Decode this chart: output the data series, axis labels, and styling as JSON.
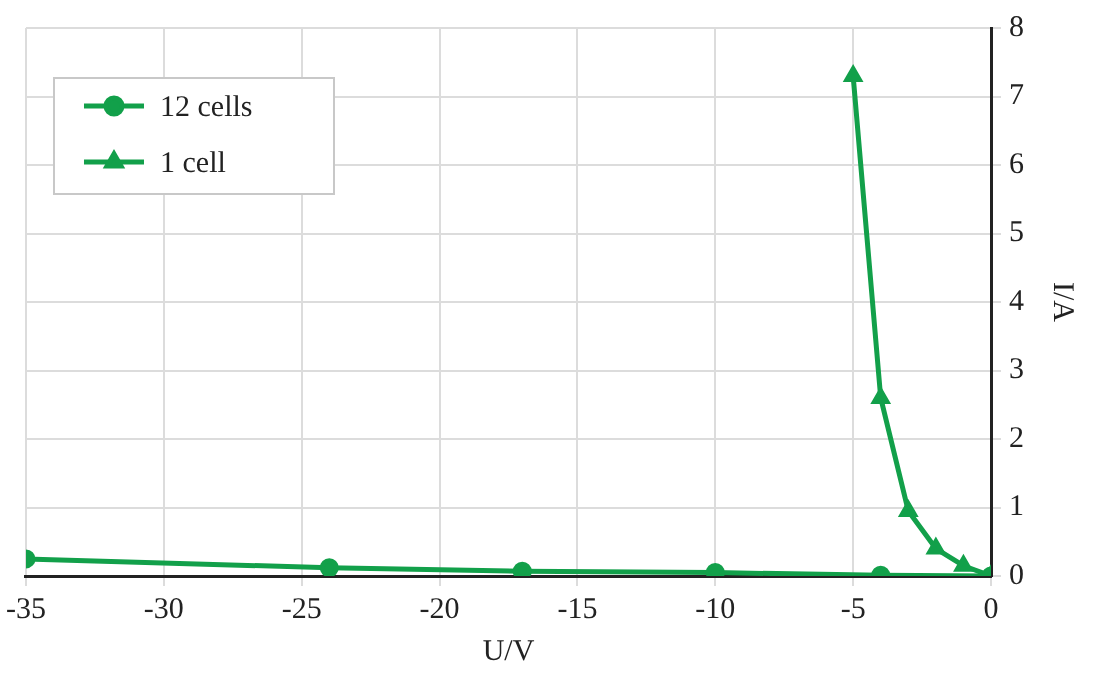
{
  "chart_data": {
    "type": "line",
    "xlabel": "U/V",
    "ylabel": "I/A",
    "xlim": [
      -35,
      0
    ],
    "xticks": [
      -35,
      -30,
      -25,
      -20,
      -15,
      -10,
      -5,
      0
    ],
    "ylim": [
      0,
      8
    ],
    "yticks": [
      0,
      1,
      2,
      3,
      4,
      5,
      6,
      7,
      8
    ],
    "grid": true,
    "legend": "top left",
    "line_style": "solid",
    "series": [
      {
        "name": "12 cells",
        "color": "#12a04a",
        "marker": "circle",
        "x": [
          -35,
          -24,
          -17,
          -10,
          -4,
          0
        ],
        "values": [
          0.25,
          0.12,
          0.07,
          0.05,
          0.01,
          0
        ]
      },
      {
        "name": "1 cell",
        "color": "#12a04a",
        "marker": "triangle",
        "x": [
          -5,
          -4,
          -3,
          -2,
          -1,
          0
        ],
        "values": [
          7.3,
          2.6,
          0.95,
          0.4,
          0.15,
          0
        ]
      }
    ]
  }
}
